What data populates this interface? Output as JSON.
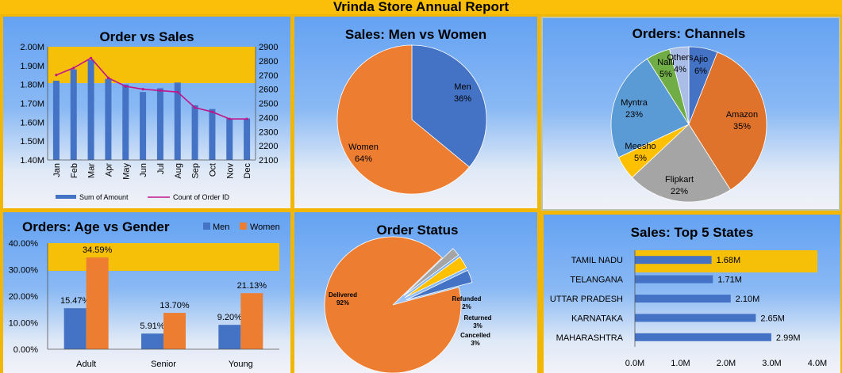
{
  "report": {
    "title": "Vrinda Store Annual Report"
  },
  "colors": {
    "blue": "#4472c4",
    "orange": "#ed7d31",
    "magenta": "#c0168a",
    "gold_band": "#f6c009",
    "gray": "#a5a5a5",
    "yellow": "#ffc000",
    "green": "#70ad47"
  },
  "chart_data": [
    {
      "id": "order-vs-sales",
      "type": "bar",
      "title": "Order vs Sales",
      "categories": [
        "Jan",
        "Feb",
        "Mar",
        "Apr",
        "May",
        "Jun",
        "Jul",
        "Aug",
        "Sep",
        "Oct",
        "Nov",
        "Dec"
      ],
      "series": [
        {
          "name": "Sum of Amount",
          "type": "bar",
          "axis": "left",
          "values": [
            1.82,
            1.88,
            1.93,
            1.83,
            1.8,
            1.76,
            1.78,
            1.81,
            1.69,
            1.67,
            1.62,
            1.62
          ]
        },
        {
          "name": "Count of Order ID",
          "type": "line",
          "axis": "right",
          "values": [
            2700,
            2750,
            2820,
            2680,
            2620,
            2600,
            2590,
            2580,
            2470,
            2440,
            2390,
            2390
          ]
        }
      ],
      "y_left": {
        "range": [
          1.4,
          2.0
        ],
        "step": 0.1,
        "tick_labels": [
          "1.40M",
          "1.50M",
          "1.60M",
          "1.70M",
          "1.80M",
          "1.90M",
          "2.00M"
        ]
      },
      "y_right": {
        "range": [
          2100,
          2900
        ],
        "step": 100,
        "tick_labels": [
          "2100",
          "2200",
          "2300",
          "2400",
          "2500",
          "2600",
          "2700",
          "2800",
          "2900"
        ]
      },
      "legend": "bottom"
    },
    {
      "id": "sales-men-women",
      "type": "pie",
      "title": "Sales: Men vs Women",
      "slices": [
        {
          "name": "Men",
          "value": 36,
          "label": "36%"
        },
        {
          "name": "Women",
          "value": 64,
          "label": "64%"
        }
      ]
    },
    {
      "id": "orders-channels",
      "type": "pie",
      "title": "Orders: Channels",
      "slices": [
        {
          "name": "Ajio",
          "value": 6,
          "label": "6%"
        },
        {
          "name": "Amazon",
          "value": 35,
          "label": "35%"
        },
        {
          "name": "Flipkart",
          "value": 22,
          "label": "22%"
        },
        {
          "name": "Meesho",
          "value": 5,
          "label": "5%"
        },
        {
          "name": "Myntra",
          "value": 23,
          "label": "23%"
        },
        {
          "name": "Nalli",
          "value": 5,
          "label": "5%"
        },
        {
          "name": "Others",
          "value": 4,
          "label": "4%"
        }
      ]
    },
    {
      "id": "orders-age-gender",
      "type": "bar",
      "title": "Orders: Age vs Gender",
      "categories": [
        "Adult",
        "Senior",
        "Young"
      ],
      "series": [
        {
          "name": "Men",
          "values": [
            15.47,
            5.91,
            9.2
          ],
          "labels": [
            "15.47%",
            "5.91%",
            "9.20%"
          ]
        },
        {
          "name": "Women",
          "values": [
            34.59,
            13.7,
            21.13
          ],
          "labels": [
            "34.59%",
            "13.70%",
            "21.13%"
          ]
        }
      ],
      "y": {
        "range": [
          0,
          40
        ],
        "step": 10,
        "tick_labels": [
          "0.00%",
          "10.00%",
          "20.00%",
          "30.00%",
          "40.00%"
        ]
      },
      "legend": "top-right"
    },
    {
      "id": "order-status",
      "type": "pie",
      "title": "Order Status",
      "slices": [
        {
          "name": "Delivered",
          "value": 92,
          "label": "92%"
        },
        {
          "name": "Refunded",
          "value": 2,
          "label": "2%"
        },
        {
          "name": "Returned",
          "value": 3,
          "label": "3%"
        },
        {
          "name": "Cancelled",
          "value": 3,
          "label": "3%"
        }
      ]
    },
    {
      "id": "sales-top-states",
      "type": "bar",
      "orientation": "horizontal",
      "title": "Sales: Top 5 States",
      "categories": [
        "TAMIL NADU",
        "TELANGANA",
        "UTTAR PRADESH",
        "KARNATAKA",
        "MAHARASHTRA"
      ],
      "values": [
        1.68,
        1.71,
        2.1,
        2.65,
        2.99
      ],
      "labels": [
        "1.68M",
        "1.71M",
        "2.10M",
        "2.65M",
        "2.99M"
      ],
      "x": {
        "range": [
          0,
          4
        ],
        "step": 1,
        "tick_labels": [
          "0.0M",
          "1.0M",
          "2.0M",
          "3.0M",
          "4.0M"
        ]
      }
    }
  ]
}
